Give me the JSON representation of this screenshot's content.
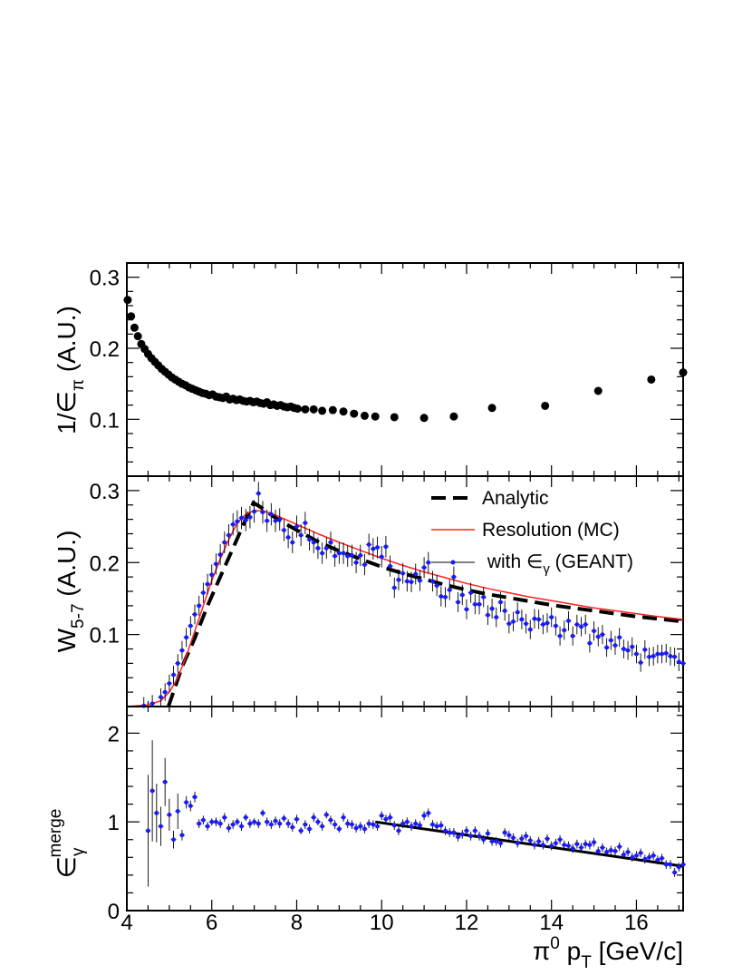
{
  "chart_data": [
    {
      "type": "scatter",
      "panel": "top",
      "ylabel": "1/ε_π (A.U.)",
      "ylabel_parts": {
        "main": "1/∈",
        "sub": "π",
        "tail": " (A.U.)"
      },
      "xlim": [
        4,
        17.1
      ],
      "ylim": [
        0.02,
        0.32
      ],
      "yticks": [
        0.1,
        0.2,
        0.3
      ],
      "ytick_labels": [
        "0.1",
        "0.2",
        "0.3"
      ],
      "series": [
        {
          "marker": "circle",
          "color": "#000000",
          "x": [
            4.02,
            4.1,
            4.18,
            4.26,
            4.34,
            4.42,
            4.5,
            4.58,
            4.66,
            4.74,
            4.82,
            4.9,
            4.98,
            5.06,
            5.14,
            5.22,
            5.3,
            5.38,
            5.46,
            5.54,
            5.62,
            5.7,
            5.78,
            5.86,
            5.94,
            6.02,
            6.1,
            6.18,
            6.26,
            6.34,
            6.42,
            6.5,
            6.58,
            6.66,
            6.74,
            6.82,
            6.9,
            6.98,
            7.06,
            7.14,
            7.22,
            7.3,
            7.38,
            7.46,
            7.54,
            7.62,
            7.7,
            7.78,
            7.86,
            7.94,
            8.02,
            8.2,
            8.4,
            8.6,
            8.85,
            9.1,
            9.35,
            9.6,
            9.85,
            10.3,
            11.0,
            11.7,
            12.6,
            13.85,
            15.1,
            16.35,
            17.1
          ],
          "y": [
            0.268,
            0.245,
            0.229,
            0.217,
            0.206,
            0.199,
            0.192,
            0.186,
            0.181,
            0.176,
            0.171,
            0.167,
            0.163,
            0.159,
            0.156,
            0.153,
            0.15,
            0.148,
            0.145,
            0.143,
            0.141,
            0.139,
            0.137,
            0.136,
            0.134,
            0.135,
            0.132,
            0.131,
            0.13,
            0.132,
            0.128,
            0.129,
            0.127,
            0.128,
            0.126,
            0.125,
            0.126,
            0.124,
            0.125,
            0.123,
            0.122,
            0.124,
            0.12,
            0.121,
            0.119,
            0.12,
            0.118,
            0.117,
            0.118,
            0.116,
            0.115,
            0.114,
            0.114,
            0.112,
            0.113,
            0.111,
            0.108,
            0.105,
            0.104,
            0.103,
            0.102,
            0.104,
            0.116,
            0.119,
            0.14,
            0.156,
            0.166
          ]
        }
      ]
    },
    {
      "type": "line",
      "panel": "middle",
      "ylabel": "W_5-7 (A.U.)",
      "ylabel_parts": {
        "main": "W",
        "sub": "5-7",
        "tail": " (A.U.)"
      },
      "xlim": [
        4,
        17.1
      ],
      "ylim": [
        0,
        0.32
      ],
      "yticks": [
        0.1,
        0.2,
        0.3
      ],
      "ytick_labels": [
        "0.1",
        "0.2",
        "0.3"
      ],
      "legend": {
        "placement": "top-right",
        "entries": [
          "Analytic",
          "Resolution (MC)",
          " with ∈γ (GEANT)"
        ],
        "entry3_parts": {
          "pre": " with ∈",
          "sub": "γ",
          "post": " (GEANT)"
        }
      },
      "series": [
        {
          "name": "Analytic",
          "style": "dashed",
          "color": "#000000",
          "x": [
            4.98,
            5.3,
            5.6,
            5.9,
            6.2,
            6.5,
            6.8,
            6.98,
            7.15,
            7.5,
            8.0,
            8.5,
            9.0,
            9.5,
            10.0,
            10.5,
            11.0,
            11.5,
            12.0,
            12.5,
            13.0,
            13.5,
            14.0,
            14.5,
            15.0,
            15.5,
            16.0,
            16.5,
            17.1
          ],
          "y": [
            0.0,
            0.055,
            0.095,
            0.14,
            0.18,
            0.22,
            0.26,
            0.283,
            0.277,
            0.262,
            0.245,
            0.229,
            0.216,
            0.205,
            0.194,
            0.185,
            0.177,
            0.169,
            0.162,
            0.156,
            0.151,
            0.146,
            0.141,
            0.137,
            0.133,
            0.129,
            0.125,
            0.122,
            0.118
          ]
        },
        {
          "name": "Resolution (MC)",
          "style": "solid",
          "color": "#ff2020",
          "x": [
            4.0,
            4.5,
            4.8,
            5.0,
            5.2,
            5.4,
            5.6,
            5.8,
            6.0,
            6.2,
            6.4,
            6.6,
            6.8,
            7.0,
            7.2,
            7.5,
            8.0,
            8.5,
            9.0,
            9.5,
            10.0,
            10.5,
            11.0,
            11.5,
            12.0,
            12.5,
            13.0,
            13.5,
            14.0,
            14.5,
            15.0,
            15.5,
            16.0,
            16.5,
            17.1
          ],
          "y": [
            0.0,
            0.002,
            0.008,
            0.02,
            0.04,
            0.07,
            0.105,
            0.14,
            0.175,
            0.205,
            0.232,
            0.255,
            0.267,
            0.272,
            0.272,
            0.266,
            0.253,
            0.24,
            0.228,
            0.217,
            0.206,
            0.196,
            0.187,
            0.179,
            0.171,
            0.164,
            0.158,
            0.152,
            0.147,
            0.142,
            0.137,
            0.133,
            0.129,
            0.125,
            0.121
          ]
        },
        {
          "name": " with ∈γ (GEANT)",
          "style": "points",
          "color": "#1a1aff",
          "x": [
            4.4,
            4.6,
            4.8,
            4.9,
            5.0,
            5.1,
            5.2,
            5.3,
            5.4,
            5.5,
            5.6,
            5.7,
            5.8,
            5.9,
            6.0,
            6.1,
            6.2,
            6.3,
            6.4,
            6.5,
            6.6,
            6.7,
            6.8,
            6.9,
            7.0,
            7.1,
            7.2,
            7.3,
            7.4,
            7.5,
            7.6,
            7.7,
            7.8,
            7.9,
            8.0,
            8.1,
            8.2,
            8.3,
            8.4,
            8.5,
            8.6,
            8.7,
            8.8,
            8.9,
            9.0,
            9.1,
            9.2,
            9.3,
            9.4,
            9.5,
            9.6,
            9.7,
            9.8,
            9.9,
            10.0,
            10.1,
            10.2,
            10.3,
            10.4,
            10.5,
            10.6,
            10.7,
            10.8,
            10.9,
            11.0,
            11.1,
            11.2,
            11.3,
            11.4,
            11.5,
            11.6,
            11.7,
            11.8,
            11.9,
            12.0,
            12.1,
            12.2,
            12.3,
            12.4,
            12.5,
            12.6,
            12.7,
            12.8,
            12.9,
            13.0,
            13.1,
            13.2,
            13.3,
            13.4,
            13.5,
            13.6,
            13.7,
            13.8,
            13.9,
            14.0,
            14.1,
            14.2,
            14.3,
            14.4,
            14.5,
            14.6,
            14.7,
            14.8,
            14.9,
            15.0,
            15.1,
            15.2,
            15.3,
            15.4,
            15.5,
            15.6,
            15.7,
            15.8,
            15.9,
            16.0,
            16.1,
            16.2,
            16.3,
            16.4,
            16.5,
            16.6,
            16.7,
            16.8,
            16.9,
            17.0,
            17.1
          ],
          "y": [
            0.001,
            0.004,
            0.013,
            0.02,
            0.032,
            0.044,
            0.06,
            0.078,
            0.096,
            0.112,
            0.128,
            0.14,
            0.158,
            0.17,
            0.183,
            0.198,
            0.211,
            0.228,
            0.238,
            0.253,
            0.257,
            0.262,
            0.259,
            0.263,
            0.271,
            0.296,
            0.27,
            0.258,
            0.267,
            0.258,
            0.26,
            0.245,
            0.235,
            0.228,
            0.25,
            0.238,
            0.255,
            0.232,
            0.228,
            0.22,
            0.213,
            0.22,
            0.228,
            0.209,
            0.213,
            0.213,
            0.209,
            0.21,
            0.2,
            0.21,
            0.197,
            0.225,
            0.219,
            0.221,
            0.208,
            0.222,
            0.195,
            0.165,
            0.176,
            0.185,
            0.174,
            0.173,
            0.184,
            0.175,
            0.193,
            0.2,
            0.174,
            0.168,
            0.153,
            0.152,
            0.162,
            0.18,
            0.145,
            0.155,
            0.135,
            0.158,
            0.142,
            0.142,
            0.152,
            0.127,
            0.136,
            0.124,
            0.145,
            0.133,
            0.115,
            0.118,
            0.131,
            0.121,
            0.115,
            0.107,
            0.122,
            0.121,
            0.114,
            0.116,
            0.124,
            0.112,
            0.098,
            0.106,
            0.119,
            0.098,
            0.114,
            0.111,
            0.114,
            0.088,
            0.105,
            0.097,
            0.1,
            0.082,
            0.092,
            0.085,
            0.096,
            0.08,
            0.078,
            0.083,
            0.073,
            0.061,
            0.079,
            0.069,
            0.07,
            0.073,
            0.073,
            0.074,
            0.07,
            0.069,
            0.062,
            0.06
          ]
        }
      ]
    },
    {
      "type": "scatter",
      "panel": "bottom",
      "ylabel": "ε_γ^merge",
      "ylabel_parts": {
        "main": "∈",
        "sub": "γ",
        "sup": "merge"
      },
      "xlabel": "π⁰ p_T [GeV/c]",
      "xlabel_parts": {
        "main": "π",
        "sup": "0",
        "mid": " p",
        "sub": "T",
        "tail": " [GeV/c]"
      },
      "xlim": [
        4,
        17.1
      ],
      "ylim": [
        0,
        2.3
      ],
      "xticks": [
        4,
        6,
        8,
        10,
        12,
        14,
        16
      ],
      "xtick_labels": [
        "4",
        "6",
        "8",
        "10",
        "12",
        "14",
        "16"
      ],
      "yticks": [
        0,
        1,
        2
      ],
      "ytick_labels": [
        "0",
        "1",
        "2"
      ],
      "series": [
        {
          "name": "fit",
          "style": "solid",
          "color": "#000000",
          "x": [
            9.85,
            17.1
          ],
          "y": [
            1.0,
            0.5
          ]
        },
        {
          "name": "points",
          "style": "points",
          "color": "#1a1aff",
          "x": [
            4.5,
            4.6,
            4.7,
            4.8,
            4.9,
            5.0,
            5.1,
            5.2,
            5.3,
            5.4,
            5.5,
            5.6,
            5.7,
            5.8,
            5.9,
            6.0,
            6.1,
            6.2,
            6.3,
            6.4,
            6.5,
            6.6,
            6.7,
            6.8,
            6.9,
            7.0,
            7.1,
            7.2,
            7.3,
            7.4,
            7.5,
            7.6,
            7.7,
            7.8,
            7.9,
            8.0,
            8.1,
            8.2,
            8.3,
            8.4,
            8.5,
            8.6,
            8.7,
            8.8,
            8.9,
            9.0,
            9.1,
            9.2,
            9.3,
            9.4,
            9.5,
            9.6,
            9.7,
            9.8,
            9.9,
            10.0,
            10.1,
            10.2,
            10.3,
            10.4,
            10.5,
            10.6,
            10.7,
            10.8,
            10.9,
            11.0,
            11.1,
            11.2,
            11.3,
            11.4,
            11.5,
            11.6,
            11.7,
            11.8,
            11.9,
            12.0,
            12.1,
            12.2,
            12.3,
            12.4,
            12.5,
            12.6,
            12.7,
            12.8,
            12.9,
            13.0,
            13.1,
            13.2,
            13.3,
            13.4,
            13.5,
            13.6,
            13.7,
            13.8,
            13.9,
            14.0,
            14.1,
            14.2,
            14.3,
            14.4,
            14.5,
            14.6,
            14.7,
            14.8,
            14.9,
            15.0,
            15.1,
            15.2,
            15.3,
            15.4,
            15.5,
            15.6,
            15.7,
            15.8,
            15.9,
            16.0,
            16.1,
            16.2,
            16.3,
            16.4,
            16.5,
            16.6,
            16.7,
            16.8,
            16.9,
            17.0,
            17.1
          ],
          "y": [
            0.9,
            1.35,
            1.1,
            0.95,
            1.45,
            1.08,
            0.8,
            1.12,
            0.85,
            1.22,
            1.18,
            1.28,
            0.98,
            1.02,
            0.95,
            1.0,
            1.0,
            0.98,
            1.05,
            0.93,
            0.97,
            1.0,
            0.95,
            1.05,
            0.98,
            1.0,
            0.98,
            1.1,
            1.0,
            0.97,
            1.01,
            0.98,
            1.04,
            0.98,
            0.94,
            1.03,
            0.9,
            0.97,
            0.92,
            1.05,
            1.0,
            0.95,
            1.08,
            1.02,
            0.97,
            0.92,
            1.05,
            0.98,
            0.97,
            0.93,
            0.95,
            0.92,
            0.98,
            0.97,
            0.95,
            1.07,
            1.03,
            1.05,
            0.96,
            0.9,
            0.98,
            1.0,
            0.95,
            0.98,
            0.96,
            1.07,
            1.1,
            0.97,
            0.95,
            0.96,
            0.9,
            0.88,
            0.88,
            0.83,
            0.86,
            0.9,
            0.84,
            0.9,
            0.84,
            0.8,
            0.87,
            0.78,
            0.78,
            0.76,
            0.88,
            0.85,
            0.82,
            0.76,
            0.81,
            0.84,
            0.79,
            0.74,
            0.78,
            0.74,
            0.81,
            0.73,
            0.76,
            0.8,
            0.74,
            0.73,
            0.7,
            0.75,
            0.71,
            0.75,
            0.74,
            0.77,
            0.67,
            0.71,
            0.66,
            0.68,
            0.67,
            0.72,
            0.63,
            0.66,
            0.6,
            0.62,
            0.65,
            0.58,
            0.6,
            0.62,
            0.57,
            0.59,
            0.52,
            0.52,
            0.43,
            0.49,
            0.52
          ],
          "yerr": [
            0.63,
            0.57,
            0.33,
            0.22,
            0.27,
            0.18,
            0.1,
            0.2,
            0.06,
            0.07,
            0.06,
            0.06,
            0.05,
            0.05,
            0.05,
            0.04,
            0.05,
            0.05,
            0.05,
            0.05,
            0.05,
            0.04,
            0.05,
            0.04,
            0.05,
            0.04,
            0.05,
            0.04,
            0.05,
            0.05,
            0.05,
            0.05,
            0.04,
            0.05,
            0.05,
            0.05,
            0.04,
            0.05,
            0.05,
            0.05,
            0.04,
            0.05,
            0.04,
            0.05,
            0.05,
            0.04,
            0.05,
            0.05,
            0.05,
            0.05,
            0.05,
            0.05,
            0.05,
            0.05,
            0.05,
            0.05,
            0.05,
            0.05,
            0.05,
            0.05,
            0.05,
            0.05,
            0.05,
            0.05,
            0.05,
            0.05,
            0.05,
            0.05,
            0.05,
            0.05,
            0.05,
            0.05,
            0.05,
            0.05,
            0.05,
            0.05,
            0.05,
            0.05,
            0.05,
            0.05,
            0.05,
            0.05,
            0.05,
            0.05,
            0.05,
            0.05,
            0.05,
            0.05,
            0.05,
            0.05,
            0.05,
            0.05,
            0.05,
            0.05,
            0.05,
            0.05,
            0.05,
            0.05,
            0.05,
            0.05,
            0.05,
            0.05,
            0.05,
            0.05,
            0.05,
            0.05,
            0.05,
            0.05,
            0.05,
            0.05,
            0.05,
            0.05,
            0.05,
            0.05,
            0.05,
            0.05,
            0.05,
            0.05,
            0.05,
            0.05,
            0.05,
            0.05,
            0.05,
            0.05,
            0.05,
            0.05,
            0.05
          ]
        }
      ]
    }
  ]
}
